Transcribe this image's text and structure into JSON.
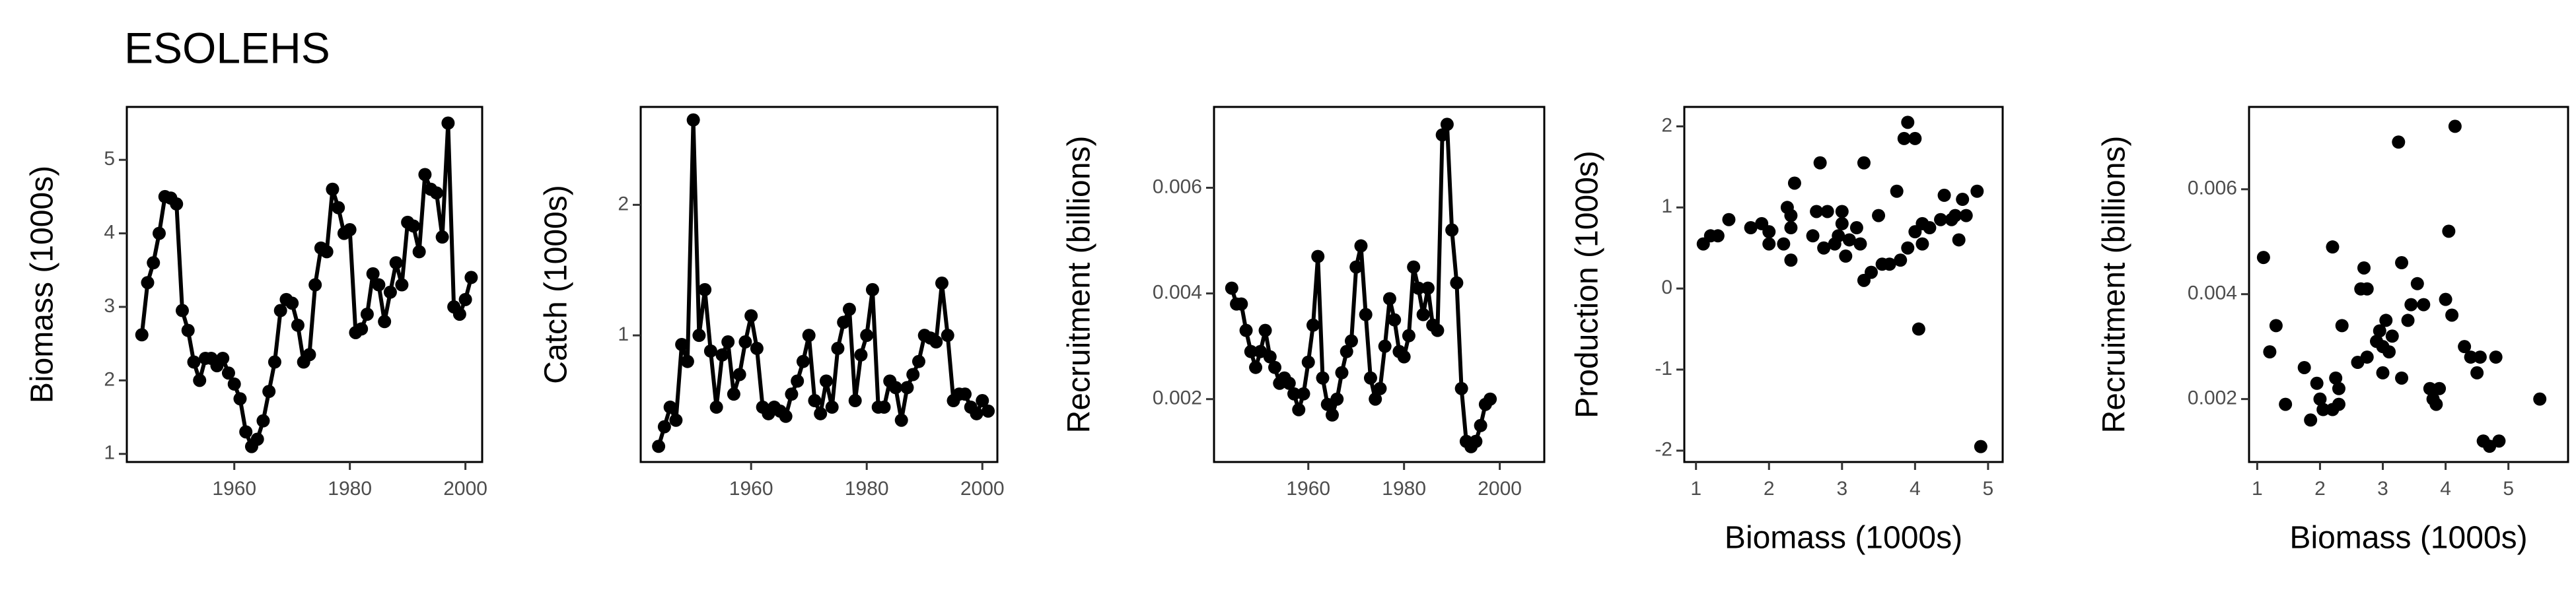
{
  "title": "ESOLEHS",
  "chart_data": [
    {
      "type": "line",
      "ylabel": "Biomass (1000s)",
      "color": "#000000",
      "x": [
        1944,
        1945,
        1946,
        1947,
        1948,
        1949,
        1950,
        1951,
        1952,
        1953,
        1954,
        1955,
        1956,
        1957,
        1958,
        1959,
        1960,
        1961,
        1962,
        1963,
        1964,
        1965,
        1966,
        1967,
        1968,
        1969,
        1970,
        1971,
        1972,
        1973,
        1974,
        1975,
        1976,
        1977,
        1978,
        1979,
        1980,
        1981,
        1982,
        1983,
        1984,
        1985,
        1986,
        1987,
        1988,
        1989,
        1990,
        1991,
        1992,
        1993,
        1994,
        1995,
        1996,
        1997,
        1998,
        1999,
        2000,
        2001
      ],
      "values": [
        2.62,
        3.33,
        3.6,
        4.0,
        4.5,
        4.48,
        4.4,
        2.95,
        2.68,
        2.25,
        2.0,
        2.3,
        2.3,
        2.2,
        2.3,
        2.1,
        1.95,
        1.75,
        1.3,
        1.1,
        1.2,
        1.45,
        1.85,
        2.25,
        2.95,
        3.1,
        3.05,
        2.75,
        2.25,
        2.35,
        3.3,
        3.8,
        3.75,
        4.6,
        4.35,
        4.0,
        4.05,
        2.65,
        2.7,
        2.9,
        3.45,
        3.3,
        2.8,
        3.2,
        3.6,
        3.3,
        4.15,
        4.1,
        3.75,
        4.8,
        4.6,
        4.55,
        3.95,
        5.5,
        3.0,
        2.9,
        3.1,
        3.4
      ],
      "xlim": [
        1941.4,
        2002.9
      ],
      "ylim": [
        0.89,
        5.72
      ],
      "xticks": [
        1960,
        1980,
        2000
      ],
      "yticks": [
        1,
        2,
        3,
        4,
        5
      ]
    },
    {
      "type": "line",
      "ylabel": "Catch (1000s)",
      "color": "#000000",
      "x": [
        1944,
        1945,
        1946,
        1947,
        1948,
        1949,
        1950,
        1951,
        1952,
        1953,
        1954,
        1955,
        1956,
        1957,
        1958,
        1959,
        1960,
        1961,
        1962,
        1963,
        1964,
        1965,
        1966,
        1967,
        1968,
        1969,
        1970,
        1971,
        1972,
        1973,
        1974,
        1975,
        1976,
        1977,
        1978,
        1979,
        1980,
        1981,
        1982,
        1983,
        1984,
        1985,
        1986,
        1987,
        1988,
        1989,
        1990,
        1991,
        1992,
        1993,
        1994,
        1995,
        1996,
        1997,
        1998,
        1999,
        2000,
        2001
      ],
      "values": [
        0.15,
        0.3,
        0.45,
        0.35,
        0.93,
        0.8,
        2.65,
        1.0,
        1.35,
        0.88,
        0.45,
        0.85,
        0.95,
        0.55,
        0.7,
        0.95,
        1.15,
        0.9,
        0.45,
        0.4,
        0.45,
        0.42,
        0.38,
        0.55,
        0.65,
        0.8,
        1.0,
        0.5,
        0.4,
        0.65,
        0.45,
        0.9,
        1.1,
        1.2,
        0.5,
        0.85,
        1.0,
        1.35,
        0.45,
        0.45,
        0.65,
        0.6,
        0.35,
        0.6,
        0.7,
        0.8,
        1.0,
        0.98,
        0.95,
        1.4,
        1.0,
        0.5,
        0.55,
        0.55,
        0.45,
        0.4,
        0.5,
        0.42
      ],
      "xlim": [
        1940.9,
        2002.6
      ],
      "ylim": [
        0.03,
        2.75
      ],
      "xticks": [
        1960,
        1980,
        2000
      ],
      "yticks": [
        1,
        2
      ]
    },
    {
      "type": "line",
      "ylabel": "Recruitment (billions)",
      "color": "#000000",
      "x": [
        1944,
        1945,
        1946,
        1947,
        1948,
        1949,
        1950,
        1951,
        1952,
        1953,
        1954,
        1955,
        1956,
        1957,
        1958,
        1959,
        1960,
        1961,
        1962,
        1963,
        1964,
        1965,
        1966,
        1967,
        1968,
        1969,
        1970,
        1971,
        1972,
        1973,
        1974,
        1975,
        1976,
        1977,
        1978,
        1979,
        1980,
        1981,
        1982,
        1983,
        1984,
        1985,
        1986,
        1987,
        1988,
        1989,
        1990,
        1991,
        1992,
        1993,
        1994,
        1995,
        1996,
        1997,
        1998
      ],
      "values": [
        0.0041,
        0.0038,
        0.0038,
        0.0033,
        0.0029,
        0.0026,
        0.0029,
        0.0033,
        0.0028,
        0.0026,
        0.0023,
        0.0024,
        0.0023,
        0.0021,
        0.0018,
        0.0021,
        0.0027,
        0.0034,
        0.0047,
        0.0024,
        0.0019,
        0.0017,
        0.002,
        0.0025,
        0.0029,
        0.0031,
        0.0045,
        0.0049,
        0.0036,
        0.0024,
        0.002,
        0.0022,
        0.003,
        0.0039,
        0.0035,
        0.0029,
        0.0028,
        0.0032,
        0.0045,
        0.0041,
        0.0036,
        0.0041,
        0.0034,
        0.0033,
        0.007,
        0.0072,
        0.0052,
        0.0042,
        0.0022,
        0.0012,
        0.0011,
        0.0012,
        0.0015,
        0.0019,
        0.002
      ],
      "xlim": [
        1940.3,
        2009.3
      ],
      "ylim": [
        0.00081,
        0.00753
      ],
      "xticks": [
        1960,
        1980,
        2000
      ],
      "yticks": [
        0.002,
        0.004,
        0.006
      ]
    },
    {
      "type": "scatter",
      "xlabel": "Biomass (1000s)",
      "ylabel": "Production (1000s)",
      "color": "#000000",
      "x": [
        1.1,
        1.2,
        1.3,
        1.45,
        1.75,
        1.9,
        2.0,
        2.0,
        2.2,
        2.25,
        2.3,
        2.3,
        2.35,
        2.3,
        2.6,
        2.65,
        2.7,
        2.75,
        2.8,
        2.9,
        2.95,
        3.0,
        3.0,
        3.05,
        3.1,
        3.2,
        3.25,
        3.3,
        3.3,
        3.4,
        3.5,
        3.55,
        3.65,
        3.75,
        3.8,
        3.85,
        3.9,
        3.9,
        4.0,
        4.0,
        4.05,
        4.1,
        4.1,
        4.2,
        4.35,
        4.4,
        4.5,
        4.55,
        4.6,
        4.65,
        4.7,
        4.85,
        4.9
      ],
      "values": [
        0.55,
        0.65,
        0.65,
        0.85,
        0.75,
        0.8,
        0.7,
        0.55,
        0.55,
        1.0,
        0.9,
        0.35,
        1.3,
        0.75,
        0.65,
        0.95,
        1.55,
        0.5,
        0.95,
        0.55,
        0.65,
        0.95,
        0.8,
        0.4,
        0.6,
        0.75,
        0.55,
        1.55,
        0.1,
        0.2,
        0.9,
        0.3,
        0.3,
        1.2,
        0.35,
        1.85,
        0.5,
        2.05,
        1.85,
        0.7,
        -0.5,
        0.55,
        0.8,
        0.75,
        0.85,
        1.15,
        0.85,
        0.9,
        0.6,
        1.1,
        0.9,
        1.2,
        -1.95
      ],
      "xlim": [
        0.84,
        5.2
      ],
      "ylim": [
        -2.14,
        2.24
      ],
      "xticks": [
        1,
        2,
        3,
        4,
        5
      ],
      "yticks": [
        -2,
        -1,
        0,
        1,
        2
      ]
    },
    {
      "type": "scatter",
      "xlabel": "Biomass (1000s)",
      "ylabel": "Recruitment (billions)",
      "color": "#000000",
      "x": [
        1.1,
        1.2,
        1.3,
        1.45,
        1.75,
        1.85,
        1.95,
        2.0,
        2.05,
        2.2,
        2.2,
        2.25,
        2.3,
        2.3,
        2.35,
        2.6,
        2.65,
        2.7,
        2.75,
        2.75,
        2.9,
        2.95,
        3.0,
        3.0,
        3.05,
        3.1,
        3.15,
        3.25,
        3.3,
        3.3,
        3.4,
        3.45,
        3.55,
        3.65,
        3.75,
        3.8,
        3.85,
        3.9,
        4.0,
        4.05,
        4.1,
        4.15,
        4.3,
        4.4,
        4.5,
        4.55,
        4.6,
        4.7,
        4.8,
        4.85,
        5.5
      ],
      "values": [
        0.0047,
        0.0029,
        0.0034,
        0.0019,
        0.0026,
        0.0016,
        0.0023,
        0.002,
        0.0018,
        0.0018,
        0.0049,
        0.0024,
        0.0019,
        0.0022,
        0.0034,
        0.0027,
        0.0041,
        0.0045,
        0.0041,
        0.0028,
        0.0031,
        0.0033,
        0.0025,
        0.003,
        0.0035,
        0.0029,
        0.0032,
        0.0069,
        0.0024,
        0.0046,
        0.0035,
        0.0038,
        0.0042,
        0.0038,
        0.0022,
        0.002,
        0.0019,
        0.0022,
        0.0039,
        0.0052,
        0.0036,
        0.0072,
        0.003,
        0.0028,
        0.0025,
        0.0028,
        0.0012,
        0.0011,
        0.0028,
        0.0012,
        0.002
      ],
      "xlim": [
        0.87,
        5.95
      ],
      "ylim": [
        0.0008,
        0.00757
      ],
      "xticks": [
        1,
        2,
        3,
        4,
        5
      ],
      "yticks": [
        0.002,
        0.004,
        0.006
      ]
    }
  ]
}
